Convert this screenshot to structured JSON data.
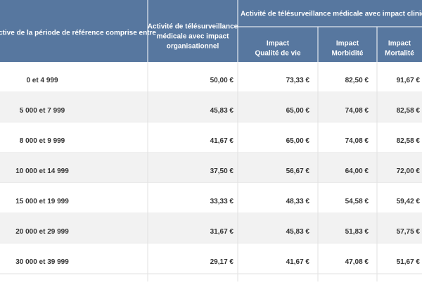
{
  "header": {
    "col1": "ctive de la période de référence comprise entre",
    "col2": [
      "Activité de télésurveillance",
      "médicale avec impact",
      "organisationnel"
    ],
    "group": "Activité de télésurveillance médicale avec impact clinique",
    "sub": [
      [
        "Impact",
        "Qualité de vie"
      ],
      [
        "Impact",
        "Morbidité"
      ],
      [
        "Impact",
        "Mortalité"
      ]
    ]
  },
  "table": {
    "rows": [
      [
        "0 et 4 999",
        "50,00 €",
        "73,33 €",
        "82,50 €",
        "91,67 €"
      ],
      [
        "5 000 et 7 999",
        "45,83 €",
        "65,00 €",
        "74,08 €",
        "82,58 €"
      ],
      [
        "8 000 et 9 999",
        "41,67 €",
        "65,00 €",
        "74,08 €",
        "82,58 €"
      ],
      [
        "10 000 et 14 999",
        "37,50 €",
        "56,67 €",
        "64,00 €",
        "72,00 €"
      ],
      [
        "15 000 et 19 999",
        "33,33 €",
        "48,33 €",
        "54,58 €",
        "59,42 €"
      ],
      [
        "20 000 et 29 999",
        "31,67 €",
        "45,83 €",
        "51,83 €",
        "57,75 €"
      ],
      [
        "30 000 et 39 999",
        "29,17 €",
        "41,67 €",
        "47,08 €",
        "51,67 €"
      ]
    ]
  }
}
